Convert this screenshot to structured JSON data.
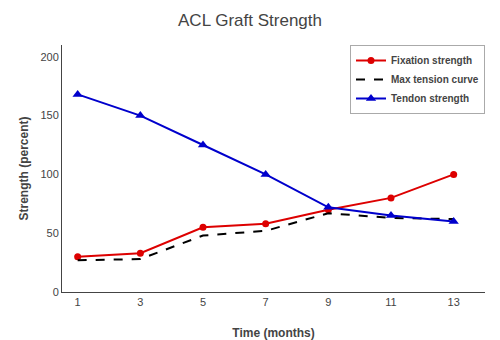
{
  "chart_data": {
    "type": "line",
    "title": "ACL Graft Strength",
    "xlabel": "Time (months)",
    "ylabel": "Strength (percent)",
    "x": [
      1,
      3,
      5,
      7,
      9,
      11,
      13
    ],
    "series": [
      {
        "name": "Fixation strength",
        "color": "#dd0000",
        "values": [
          30,
          33,
          55,
          58,
          70,
          80,
          100
        ],
        "marker": "circle",
        "line_style": "solid"
      },
      {
        "name": "Max tension curve",
        "color": "#000000",
        "values": [
          27,
          28,
          48,
          52,
          67,
          63,
          62
        ],
        "line_style": "dashed"
      },
      {
        "name": "Tendon strength",
        "color": "#0000cc",
        "values": [
          168,
          150,
          125,
          100,
          72,
          65,
          60
        ],
        "marker": "triangle-up",
        "line_style": "solid"
      }
    ],
    "xlim": [
      0.5,
      14.0
    ],
    "ylim": [
      0,
      210
    ],
    "xticks": [
      1,
      3,
      5,
      7,
      9,
      11,
      13
    ],
    "yticks": [
      0,
      50,
      100,
      150,
      200
    ],
    "grid": false,
    "legend": "upper right"
  }
}
